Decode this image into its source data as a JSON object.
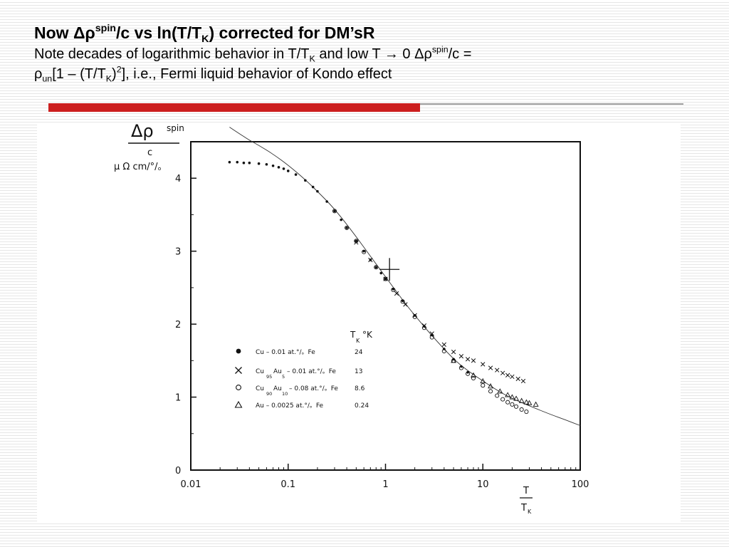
{
  "slide": {
    "title_parts": [
      "Now Δρ",
      "spin",
      "/c vs ln(T/T",
      "K",
      ") corrected for DM’sR"
    ],
    "note_parts": [
      "Note decades of logarithmic behavior in T/T",
      "K",
      " and low T ",
      "→",
      " 0 Δρ",
      "spin",
      "/c =",
      "ρ",
      "un",
      "[1 – (T/T",
      "K",
      ")",
      "2",
      "], i.e., Fermi liquid behavior of Kondo effect"
    ]
  },
  "colors": {
    "accent_red": "#cc1f1f",
    "rule_gray": "#a0a0a0",
    "plot_ink": "#111111"
  },
  "chart_data": {
    "type": "scatter",
    "x_scale": "log",
    "xlim": [
      0.01,
      100
    ],
    "ylim": [
      0,
      4.5
    ],
    "xticks": [
      0.01,
      0.1,
      1,
      10,
      100
    ],
    "xtick_labels": [
      "0.01",
      "0.1",
      "1",
      "10",
      "100"
    ],
    "yticks": [
      0,
      1,
      2,
      3,
      4
    ],
    "ytick_labels": [
      "0",
      "1",
      "2",
      "3",
      "4"
    ],
    "ylabel_parts": [
      "Δρ",
      "spin",
      "c",
      "μ Ω cm/°/。"
    ],
    "xlabel_parts": [
      "T",
      "T",
      "K"
    ],
    "legend": {
      "placement": "center-left",
      "header": "T",
      "header_sub": "K",
      "header_unit": "°K",
      "entries": [
        {
          "marker": "dot",
          "label": "Cu – 0.01 at.°/。Fe",
          "tk": "24"
        },
        {
          "marker": "cross",
          "label_parts": [
            "Cu",
            "95",
            "Au",
            "5",
            "– 0.01 at.°/。Fe"
          ],
          "tk": "13"
        },
        {
          "marker": "circle",
          "label_parts": [
            "Cu",
            "90",
            "Au",
            "10",
            "– 0.08 at.°/。Fe"
          ],
          "tk": "8.6"
        },
        {
          "marker": "triangle",
          "label": "Au – 0.0025 at.°/。Fe",
          "tk": "0.24"
        }
      ]
    },
    "big_cross": {
      "x": 1.1,
      "y": 2.75
    },
    "series": [
      {
        "marker": "dot",
        "x": [
          0.025,
          0.03,
          0.035,
          0.04,
          0.05,
          0.06,
          0.07,
          0.08,
          0.09,
          0.1,
          0.12,
          0.15,
          0.18,
          0.2,
          0.25,
          0.3,
          0.35,
          0.4,
          0.5,
          0.6,
          0.7,
          0.8,
          0.9,
          1.0,
          1.2,
          1.5,
          2.0,
          2.5,
          3.0,
          4.0,
          5.0,
          6.0,
          7.0
        ],
        "y": [
          4.22,
          4.22,
          4.21,
          4.21,
          4.2,
          4.19,
          4.17,
          4.15,
          4.13,
          4.1,
          4.05,
          3.97,
          3.88,
          3.82,
          3.68,
          3.55,
          3.43,
          3.32,
          3.14,
          3.0,
          2.88,
          2.78,
          2.7,
          2.62,
          2.48,
          2.32,
          2.12,
          1.97,
          1.85,
          1.66,
          1.52,
          1.42,
          1.34
        ]
      },
      {
        "marker": "cross",
        "x": [
          0.5,
          0.7,
          1.0,
          1.3,
          1.6,
          2.0,
          2.5,
          3.0,
          4.0,
          5.0,
          6.0,
          7.0,
          8.0,
          10.0,
          12.0,
          14.0,
          16.0,
          18.0,
          20.0,
          23.0,
          26.0
        ],
        "y": [
          3.12,
          2.88,
          2.62,
          2.42,
          2.27,
          2.12,
          1.98,
          1.87,
          1.72,
          1.62,
          1.56,
          1.52,
          1.5,
          1.45,
          1.4,
          1.37,
          1.33,
          1.3,
          1.28,
          1.25,
          1.22
        ]
      },
      {
        "marker": "circle",
        "x": [
          0.3,
          0.4,
          0.5,
          0.6,
          0.8,
          1.0,
          1.2,
          1.5,
          2.0,
          2.5,
          3.0,
          4.0,
          5.0,
          6.0,
          7.0,
          8.0,
          10.0,
          12.0,
          14.0,
          16.0,
          18.0,
          20.0,
          22.0,
          25.0,
          28.0
        ],
        "y": [
          3.55,
          3.32,
          3.14,
          2.99,
          2.78,
          2.62,
          2.47,
          2.31,
          2.1,
          1.95,
          1.82,
          1.63,
          1.5,
          1.4,
          1.32,
          1.26,
          1.16,
          1.08,
          1.02,
          0.97,
          0.93,
          0.9,
          0.87,
          0.83,
          0.8
        ]
      },
      {
        "marker": "triangle",
        "x": [
          5.0,
          8.0,
          10.0,
          12.0,
          15.0,
          18.0,
          20.0,
          22.0,
          25.0,
          28.0,
          30.0,
          35.0
        ],
        "y": [
          1.5,
          1.3,
          1.22,
          1.15,
          1.08,
          1.03,
          1.0,
          0.98,
          0.95,
          0.93,
          0.92,
          0.9
        ]
      }
    ],
    "fit_curve": {
      "x": [
        0.025,
        0.03,
        0.04,
        0.05,
        0.07,
        0.1,
        0.15,
        0.2,
        0.3,
        0.5,
        0.7,
        1.0,
        1.5,
        2.0,
        3.0,
        5.0,
        7.0,
        10.0,
        15.0,
        20.0,
        30.0,
        50.0,
        70.0,
        100.0
      ],
      "y": [
        4.7,
        4.63,
        4.52,
        4.45,
        4.33,
        4.18,
        3.98,
        3.82,
        3.58,
        3.2,
        2.93,
        2.65,
        2.33,
        2.12,
        1.84,
        1.52,
        1.36,
        1.22,
        1.07,
        0.98,
        0.88,
        0.76,
        0.69,
        0.61
      ]
    }
  }
}
